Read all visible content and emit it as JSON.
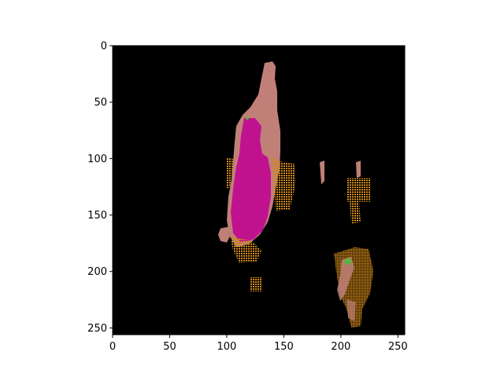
{
  "image": {
    "description_colors": {
      "background": "#000000",
      "region_magenta": "#c0128f",
      "region_pink": "#c08078",
      "speckle_orange": "#d08818",
      "highlight_green": "#4dbb3a"
    }
  },
  "axes": {
    "xlim": [
      0,
      256
    ],
    "ylim": [
      256,
      0
    ],
    "x_ticks": [
      {
        "value": 0,
        "label": "0"
      },
      {
        "value": 50,
        "label": "50"
      },
      {
        "value": 100,
        "label": "100"
      },
      {
        "value": 150,
        "label": "150"
      },
      {
        "value": 200,
        "label": "200"
      },
      {
        "value": 250,
        "label": "250"
      }
    ],
    "y_ticks": [
      {
        "value": 0,
        "label": "0"
      },
      {
        "value": 50,
        "label": "50"
      },
      {
        "value": 100,
        "label": "100"
      },
      {
        "value": 150,
        "label": "150"
      },
      {
        "value": 200,
        "label": "200"
      },
      {
        "value": 250,
        "label": "250"
      }
    ]
  }
}
